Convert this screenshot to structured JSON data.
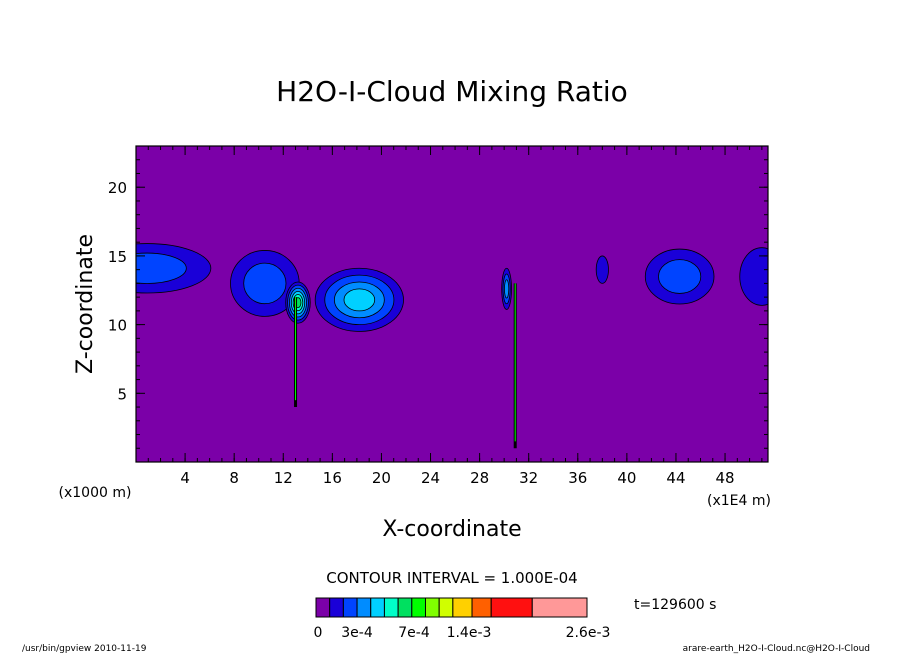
{
  "chart_data": {
    "type": "heatmap",
    "title": "H2O-I-Cloud Mixing Ratio",
    "xlabel": "X-coordinate",
    "ylabel": "Z-coordinate",
    "x_unit": "(x1E4 m)",
    "y_unit": "(x1000 m)",
    "x_range": [
      0,
      51.5
    ],
    "y_range": [
      0,
      23
    ],
    "x_ticks": [
      4,
      8,
      12,
      16,
      20,
      24,
      28,
      32,
      36,
      40,
      44,
      48
    ],
    "y_ticks": [
      5,
      10,
      15,
      20
    ],
    "contour_interval_text": "CONTOUR INTERVAL = 1.000E-04",
    "time_text": "t=129600 s",
    "colorbar": {
      "colors": [
        "#7b00a8",
        "#1a00d8",
        "#0044ff",
        "#008cff",
        "#00d0ff",
        "#00ffc8",
        "#00e060",
        "#00ff00",
        "#80ff00",
        "#d0ff00",
        "#ffd000",
        "#ff6000",
        "#ff1010",
        "#ff9898"
      ],
      "labels": [
        "0",
        "3e-4",
        "7e-4",
        "1.4e-3",
        "2.6e-3"
      ]
    },
    "background_color": "#7b00a8",
    "features": [
      {
        "cx": 0.9,
        "cy": 14.1,
        "rx": 5.2,
        "ry": 1.8,
        "levels": 2
      },
      {
        "cx": 10.5,
        "cy": 13.0,
        "rx": 2.8,
        "ry": 2.4,
        "levels": 2
      },
      {
        "cx": 13.2,
        "cy": 11.6,
        "rx": 1.0,
        "ry": 1.5,
        "levels": 6
      },
      {
        "cx": 18.2,
        "cy": 11.8,
        "rx": 3.6,
        "ry": 2.3,
        "levels": 4
      },
      {
        "cx": 30.2,
        "cy": 12.6,
        "rx": 0.4,
        "ry": 1.5,
        "levels": 3
      },
      {
        "cx": 38.0,
        "cy": 14.0,
        "rx": 0.5,
        "ry": 1.0,
        "levels": 1
      },
      {
        "cx": 44.3,
        "cy": 13.5,
        "rx": 2.8,
        "ry": 2.0,
        "levels": 2
      },
      {
        "cx": 51.0,
        "cy": 13.5,
        "rx": 1.8,
        "ry": 2.1,
        "levels": 1
      }
    ],
    "stems": [
      {
        "x": 13.0,
        "y0": 4.0,
        "y1": 12.0
      },
      {
        "x": 30.9,
        "y0": 1.0,
        "y1": 13.0
      }
    ]
  },
  "footer": {
    "left": "/usr/bin/gpview   2010-11-19",
    "right": "arare-earth_H2O-I-Cloud.nc@H2O-I-Cloud"
  }
}
